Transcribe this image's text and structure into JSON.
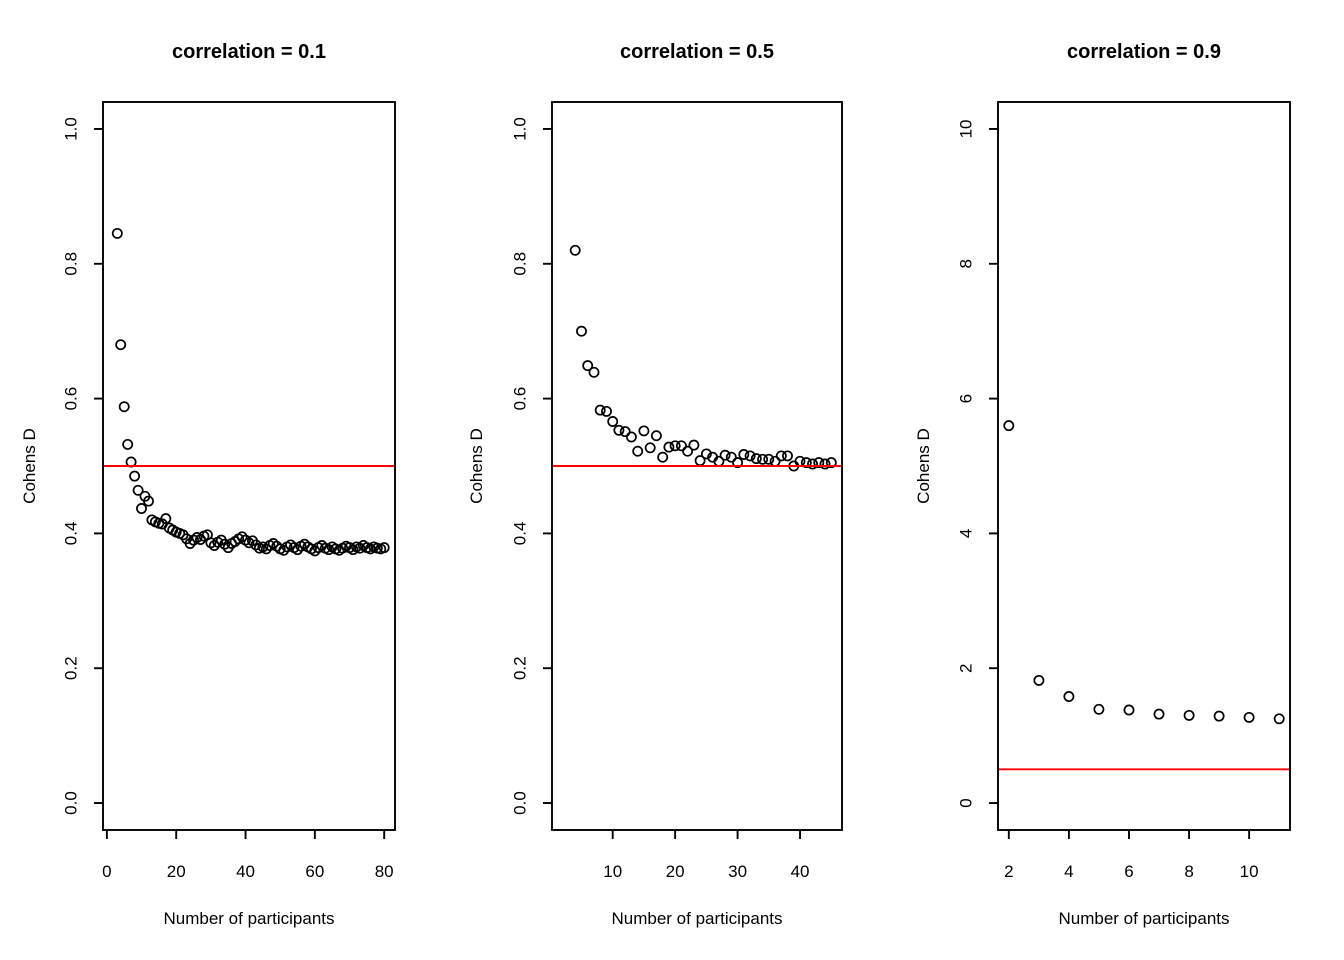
{
  "figure": {
    "background": "#ffffff",
    "point_color": "#000000",
    "reference_line_color": "#ff0000",
    "marker": "open-circle"
  },
  "chart_data": [
    {
      "type": "scatter",
      "title": "correlation = 0.1",
      "xlabel": "Number of participants",
      "ylabel": "Cohens D",
      "xlim": [
        -1.12,
        83.12
      ],
      "ylim": [
        -0.04,
        1.04
      ],
      "x_ticks": [
        0,
        20,
        40,
        60,
        80
      ],
      "x_tick_labels": [
        "0",
        "20",
        "40",
        "60",
        "80"
      ],
      "y_ticks": [
        0,
        0.2,
        0.4,
        0.6,
        0.8,
        1.0
      ],
      "y_tick_labels": [
        "0.0",
        "0.2",
        "0.4",
        "0.6",
        "0.8",
        "1.0"
      ],
      "reference_line_y": 0.5,
      "grid": false,
      "x": [
        3,
        4,
        5,
        6,
        7,
        8,
        9,
        10,
        11,
        12,
        13,
        14,
        15,
        16,
        17,
        18,
        19,
        20,
        21,
        22,
        23,
        24,
        25,
        26,
        27,
        28,
        29,
        30,
        31,
        32,
        33,
        34,
        35,
        36,
        37,
        38,
        39,
        40,
        41,
        42,
        43,
        44,
        45,
        46,
        47,
        48,
        49,
        50,
        51,
        52,
        53,
        54,
        55,
        56,
        57,
        58,
        59,
        60,
        61,
        62,
        63,
        64,
        65,
        66,
        67,
        68,
        69,
        70,
        71,
        72,
        73,
        74,
        75,
        76,
        77,
        78,
        79,
        80
      ],
      "y": [
        0.845,
        0.68,
        0.588,
        0.532,
        0.506,
        0.485,
        0.464,
        0.437,
        0.455,
        0.448,
        0.42,
        0.417,
        0.415,
        0.414,
        0.422,
        0.408,
        0.405,
        0.402,
        0.4,
        0.398,
        0.392,
        0.385,
        0.39,
        0.394,
        0.391,
        0.396,
        0.398,
        0.386,
        0.382,
        0.387,
        0.39,
        0.384,
        0.379,
        0.385,
        0.388,
        0.392,
        0.395,
        0.39,
        0.386,
        0.389,
        0.383,
        0.378,
        0.38,
        0.377,
        0.382,
        0.385,
        0.381,
        0.377,
        0.375,
        0.38,
        0.383,
        0.379,
        0.376,
        0.381,
        0.384,
        0.38,
        0.377,
        0.374,
        0.379,
        0.382,
        0.378,
        0.376,
        0.38,
        0.377,
        0.375,
        0.378,
        0.381,
        0.379,
        0.376,
        0.38,
        0.378,
        0.382,
        0.379,
        0.377,
        0.38,
        0.378,
        0.377,
        0.379
      ]
    },
    {
      "type": "scatter",
      "title": "correlation = 0.5",
      "xlabel": "Number of participants",
      "ylabel": "Cohens D",
      "xlim": [
        0.28,
        46.72
      ],
      "ylim": [
        -0.04,
        1.04
      ],
      "x_ticks": [
        10,
        20,
        30,
        40
      ],
      "x_tick_labels": [
        "10",
        "20",
        "30",
        "40"
      ],
      "y_ticks": [
        0,
        0.2,
        0.4,
        0.6,
        0.8,
        1.0
      ],
      "y_tick_labels": [
        "0.0",
        "0.2",
        "0.4",
        "0.6",
        "0.8",
        "1.0"
      ],
      "reference_line_y": 0.5,
      "grid": false,
      "x": [
        4,
        5,
        6,
        7,
        8,
        9,
        10,
        11,
        12,
        13,
        14,
        15,
        16,
        17,
        18,
        19,
        20,
        21,
        22,
        23,
        24,
        25,
        26,
        27,
        28,
        29,
        30,
        31,
        32,
        33,
        34,
        35,
        36,
        37,
        38,
        39,
        40,
        41,
        42,
        43,
        44,
        45
      ],
      "y": [
        0.82,
        0.7,
        0.649,
        0.639,
        0.583,
        0.581,
        0.566,
        0.553,
        0.551,
        0.543,
        0.522,
        0.552,
        0.527,
        0.545,
        0.513,
        0.528,
        0.53,
        0.53,
        0.522,
        0.531,
        0.508,
        0.518,
        0.513,
        0.507,
        0.516,
        0.513,
        0.505,
        0.517,
        0.515,
        0.511,
        0.51,
        0.51,
        0.507,
        0.515,
        0.515,
        0.5,
        0.507,
        0.505,
        0.503,
        0.505,
        0.503,
        0.505
      ]
    },
    {
      "type": "scatter",
      "title": "correlation = 0.9",
      "xlabel": "Number of participants",
      "ylabel": "Cohens D",
      "xlim": [
        1.64,
        11.36
      ],
      "ylim": [
        -0.4,
        10.4
      ],
      "x_ticks": [
        2,
        4,
        6,
        8,
        10
      ],
      "x_tick_labels": [
        "2",
        "4",
        "6",
        "8",
        "10"
      ],
      "y_ticks": [
        0,
        2,
        4,
        6,
        8,
        10
      ],
      "y_tick_labels": [
        "0",
        "2",
        "4",
        "6",
        "8",
        "10"
      ],
      "reference_line_y": 0.5,
      "grid": false,
      "x": [
        2,
        3,
        4,
        5,
        6,
        7,
        8,
        9,
        10,
        11
      ],
      "y": [
        5.6,
        1.82,
        1.58,
        1.39,
        1.38,
        1.32,
        1.3,
        1.29,
        1.27,
        1.25
      ]
    }
  ]
}
